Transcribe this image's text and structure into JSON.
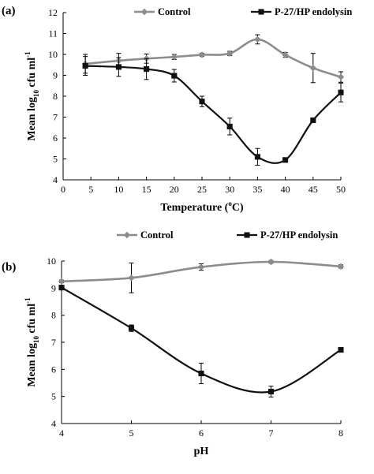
{
  "chart_data": [
    {
      "type": "line",
      "panel_label": "(a)",
      "xlabel": {
        "base": "Temperature (",
        "sup": "o",
        "rest": "C)"
      },
      "ylabel": {
        "p1": "Mean log",
        "sub": "10",
        "p2": " cfu ml",
        "sup": "-1"
      },
      "xlim": [
        0,
        50
      ],
      "ylim": [
        4,
        12
      ],
      "xticks": [
        0,
        5,
        10,
        15,
        20,
        25,
        30,
        35,
        40,
        45,
        50
      ],
      "yticks": [
        4,
        5,
        6,
        7,
        8,
        9,
        10,
        11,
        12
      ],
      "legend_position": "top-right",
      "grid": false,
      "series": [
        {
          "name": "Control",
          "color": "#8c8c8c",
          "marker": "diamond",
          "x": [
            4,
            10,
            15,
            20,
            25,
            30,
            35,
            40,
            45,
            50
          ],
          "y": [
            9.55,
            9.7,
            9.8,
            9.88,
            9.98,
            10.05,
            10.72,
            9.98,
            9.35,
            8.92
          ],
          "err": [
            0.45,
            0.35,
            0.22,
            0.12,
            0.08,
            0.1,
            0.22,
            0.12,
            0.7,
            0.25
          ]
        },
        {
          "name": "P-27/HP endolysin",
          "color": "#111111",
          "marker": "square",
          "x": [
            4,
            10,
            15,
            20,
            25,
            30,
            35,
            40,
            45,
            50
          ],
          "y": [
            9.45,
            9.4,
            9.3,
            8.98,
            7.75,
            6.55,
            5.1,
            4.95,
            6.85,
            8.18
          ],
          "err": [
            0.45,
            0.45,
            0.5,
            0.3,
            0.25,
            0.4,
            0.4,
            0.1,
            0.08,
            0.45
          ]
        }
      ]
    },
    {
      "type": "line",
      "panel_label": "(b)",
      "xlabel": {
        "base": "pH",
        "sup": "",
        "rest": ""
      },
      "ylabel": {
        "p1": "Mean log",
        "sub": "10",
        "p2": " cfu ml",
        "sup": "-1"
      },
      "xlim": [
        4,
        8
      ],
      "ylim": [
        4,
        10
      ],
      "xticks": [
        4,
        5,
        6,
        7,
        8
      ],
      "yticks": [
        4,
        5,
        6,
        7,
        8,
        9,
        10
      ],
      "legend_position": "top-left",
      "grid": false,
      "series": [
        {
          "name": "Control",
          "color": "#8c8c8c",
          "marker": "diamond",
          "x": [
            4,
            5,
            6,
            7,
            8
          ],
          "y": [
            9.25,
            9.38,
            9.78,
            9.97,
            9.8
          ],
          "err": [
            0.05,
            0.55,
            0.12,
            0.05,
            0.06
          ]
        },
        {
          "name": "P-27/HP endolysin",
          "color": "#111111",
          "marker": "square",
          "x": [
            4,
            5,
            6,
            7,
            8
          ],
          "y": [
            9.02,
            7.52,
            5.85,
            5.18,
            6.72
          ],
          "err": [
            0.06,
            0.12,
            0.38,
            0.2,
            0.06
          ]
        }
      ]
    }
  ]
}
